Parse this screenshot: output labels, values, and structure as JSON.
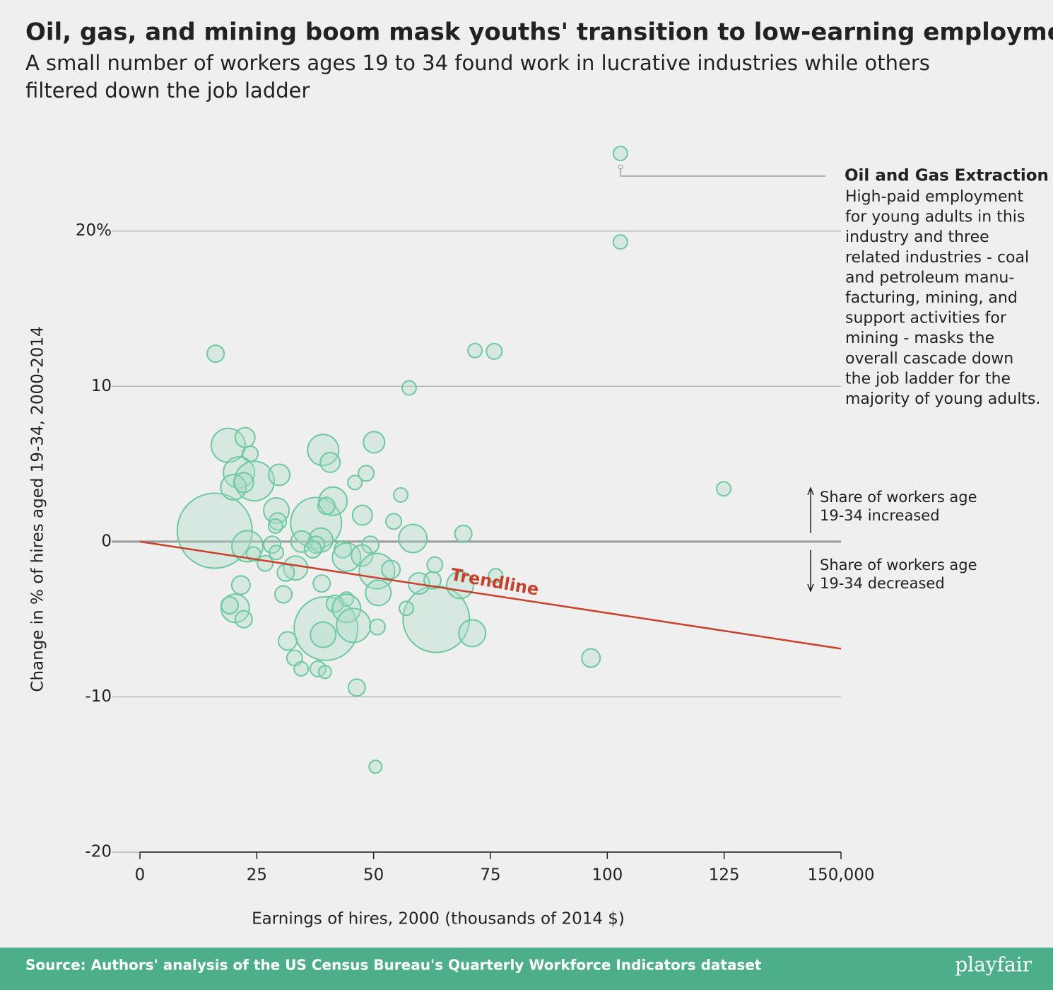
{
  "chart_data": {
    "type": "bubble",
    "title": "Oil, gas, and mining boom mask youths' transition to low-earning employment",
    "subtitle": [
      "A small number of workers ages 19 to 34 found work in lucrative industries while others",
      "filtered down the job ladder"
    ],
    "x_label": "Earnings of hires, 2000 (thousands of 2014 $)",
    "y_label": "Change in % of hires aged 19-34, 2000-2014",
    "xlim": [
      0,
      150
    ],
    "ylim": [
      -20,
      26
    ],
    "xticks": [
      0,
      25,
      50,
      75,
      100,
      125,
      {
        "value": 150,
        "label": "150,000"
      }
    ],
    "yticks": [
      -20,
      -10,
      0,
      10,
      {
        "value": 20,
        "label": "20%"
      }
    ],
    "grid": true,
    "color": "#6cc9a0",
    "series": [
      {
        "x": [
          102.8,
          102.8,
          16.2,
          71.7,
          75.8,
          57.6,
          124.9,
          16.0,
          63.4,
          39.8,
          37.7,
          18.9,
          22.5,
          39.2,
          40.7,
          50.1,
          23.6,
          21.2,
          24.5,
          29.8,
          20.0,
          22.2,
          48.4,
          46.0,
          55.8,
          41.3,
          39.9,
          29.2,
          29.5,
          47.6,
          54.3,
          29.0,
          69.2,
          58.4,
          38.7,
          34.6,
          23.0,
          37.7,
          28.3,
          49.3,
          43.4,
          37.0,
          24.3,
          29.2,
          44.2,
          47.5,
          26.8,
          33.3,
          31.2,
          50.7,
          53.7,
          63.1,
          76.1,
          59.7,
          62.6,
          68.5,
          21.6,
          38.9,
          51.0,
          30.7,
          44.2,
          41.7,
          44.2,
          20.4,
          19.2,
          57.0,
          22.2,
          45.7,
          50.8,
          39.2,
          71.1,
          31.6,
          33.1,
          34.5,
          38.1,
          39.6,
          96.5,
          46.4,
          50.4
        ],
        "values": [
          25.0,
          19.3,
          12.1,
          12.3,
          12.25,
          9.9,
          3.4,
          0.7,
          -5.0,
          -5.6,
          1.2,
          6.2,
          6.7,
          5.9,
          5.1,
          6.4,
          5.65,
          4.45,
          3.9,
          4.3,
          3.5,
          3.8,
          4.4,
          3.8,
          3.0,
          2.6,
          2.3,
          2.0,
          1.3,
          1.7,
          1.3,
          1.0,
          0.5,
          0.2,
          0.1,
          0.0,
          -0.3,
          -0.2,
          -0.2,
          -0.2,
          -0.5,
          -0.5,
          -0.8,
          -0.7,
          -1.0,
          -0.9,
          -1.4,
          -1.7,
          -2.0,
          -1.9,
          -1.8,
          -1.5,
          -2.2,
          -2.7,
          -2.5,
          -2.8,
          -2.8,
          -2.7,
          -3.3,
          -3.4,
          -3.7,
          -4.0,
          -4.3,
          -4.3,
          -4.1,
          -4.3,
          -5.0,
          -5.4,
          -5.5,
          -6.0,
          -5.9,
          -6.4,
          -7.5,
          -8.2,
          -8.2,
          -8.4,
          -7.5,
          -9.4,
          -14.5
        ],
        "sizes": [
          100,
          100,
          144,
          100,
          121,
          100,
          100,
          2809,
          2209,
          2025,
          1296,
          576,
          196,
          484,
          196,
          225,
          121,
          484,
          784,
          225,
          324,
          196,
          121,
          100,
          100,
          400,
          144,
          324,
          144,
          196,
          121,
          100,
          144,
          400,
          289,
          225,
          484,
          144,
          144,
          144,
          144,
          144,
          100,
          100,
          400,
          225,
          121,
          289,
          144,
          625,
          169,
          121,
          100,
          225,
          144,
          361,
          169,
          144,
          324,
          144,
          100,
          144,
          400,
          400,
          144,
          100,
          144,
          576,
          121,
          324,
          361,
          169,
          121,
          100,
          121,
          81,
          169,
          144,
          81
        ]
      }
    ],
    "trendline": {
      "label": "Trendline",
      "x": [
        0,
        150
      ],
      "y": [
        0,
        -6.9
      ],
      "color": "#c8412b"
    },
    "annotation": {
      "title": "Oil and Gas Extraction",
      "lines": [
        "High-paid employment",
        "for young adults in this",
        "industry and three",
        "related industries - coal",
        "and petroleum manu-",
        "facturing, mining, and",
        "support activities for",
        "mining - masks the",
        "overall cascade down",
        "the job ladder for the",
        "majority of young adults."
      ]
    },
    "increase_note": [
      "Share of workers age",
      "19-34 increased"
    ],
    "decrease_note": [
      "Share of workers age",
      "19-34 decreased"
    ],
    "source": "Source: Authors' analysis of the US Census Bureau's Quarterly Workforce Indicators dataset",
    "brand": "playfair"
  }
}
